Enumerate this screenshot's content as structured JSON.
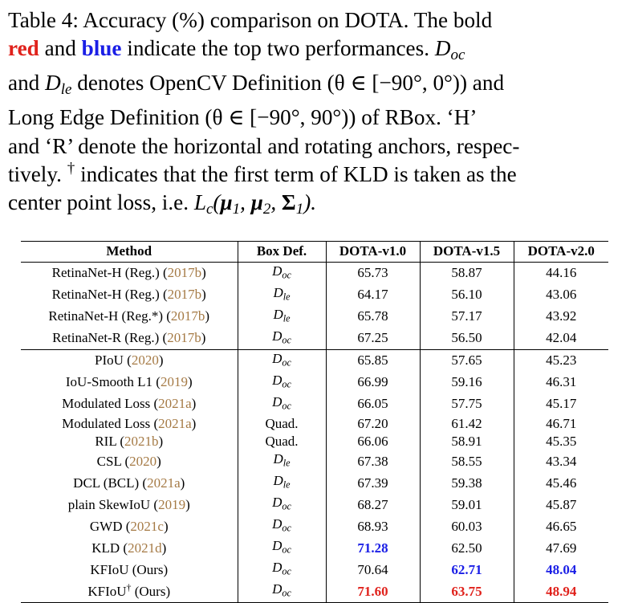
{
  "caption": {
    "label": "Table 4:",
    "t1": " Accuracy (%) comparison on DOTA. The bold",
    "red_word": "red",
    "t2": " and ",
    "blue_word": "blue",
    "t3": " indicate the top two performances.  ",
    "d_oc_main": "D",
    "d_oc_sub": "oc",
    "t4": "and ",
    "d_le_main": "D",
    "d_le_sub": "le",
    "t5": " denotes OpenCV Definition (θ ∈ [−90°, 0°)) and",
    "line4": "Long Edge Definition (θ ∈ [−90°, 90°)) of RBox.  ‘H’",
    "line5": "and ‘R’ denote the horizontal and rotating anchors, respec-",
    "line6a": "tively. ",
    "dagger": "†",
    "line6b": " indicates that the first term of KLD is taken as the",
    "line7a": "center point loss, i.e. ",
    "lc_main": "L",
    "lc_sub": "c",
    "mu": "μ",
    "sigma": "Σ",
    "sub1": "1",
    "sub2": "2"
  },
  "table": {
    "headers": [
      "Method",
      "Box Def.",
      "DOTA-v1.0",
      "DOTA-v1.5",
      "DOTA-v2.0"
    ],
    "rows": [
      {
        "method": "RetinaNet-H (Reg.) (",
        "cite": "2017b",
        "close": ")",
        "def_main": "D",
        "def_sub": "oc",
        "v1": "65.73",
        "v15": "58.87",
        "v2": "44.16"
      },
      {
        "method": "RetinaNet-H (Reg.) (",
        "cite": "2017b",
        "close": ")",
        "def_main": "D",
        "def_sub": "le",
        "v1": "64.17",
        "v15": "56.10",
        "v2": "43.06"
      },
      {
        "method": "RetinaNet-H (Reg.*) (",
        "cite": "2017b",
        "close": ")",
        "def_main": "D",
        "def_sub": "le",
        "v1": "65.78",
        "v15": "57.17",
        "v2": "43.92"
      },
      {
        "method": "RetinaNet-R (Reg.) (",
        "cite": "2017b",
        "close": ")",
        "def_main": "D",
        "def_sub": "oc",
        "v1": "67.25",
        "v15": "56.50",
        "v2": "42.04"
      },
      {
        "method": "PIoU (",
        "cite": "2020",
        "close": ")",
        "def_main": "D",
        "def_sub": "oc",
        "v1": "65.85",
        "v15": "57.65",
        "v2": "45.23"
      },
      {
        "method": "IoU-Smooth L1 (",
        "cite": "2019",
        "close": ")",
        "def_main": "D",
        "def_sub": "oc",
        "v1": "66.99",
        "v15": "59.16",
        "v2": "46.31"
      },
      {
        "method": "Modulated Loss (",
        "cite": "2021a",
        "close": ")",
        "def_main": "D",
        "def_sub": "oc",
        "v1": "66.05",
        "v15": "57.75",
        "v2": "45.17"
      },
      {
        "method": "Modulated Loss (",
        "cite": "2021a",
        "close": ")",
        "def_text": "Quad.",
        "v1": "67.20",
        "v15": "61.42",
        "v2": "46.71"
      },
      {
        "method": "RIL (",
        "cite": "2021b",
        "close": ")",
        "def_text": "Quad.",
        "v1": "66.06",
        "v15": "58.91",
        "v2": "45.35"
      },
      {
        "method": "CSL (",
        "cite": "2020",
        "close": ")",
        "def_main": "D",
        "def_sub": "le",
        "v1": "67.38",
        "v15": "58.55",
        "v2": "43.34"
      },
      {
        "method": "DCL (BCL) (",
        "cite": "2021a",
        "close": ")",
        "def_main": "D",
        "def_sub": "le",
        "v1": "67.39",
        "v15": "59.38",
        "v2": "45.46"
      },
      {
        "method": "plain SkewIoU (",
        "cite": "2019",
        "close": ")",
        "def_main": "D",
        "def_sub": "oc",
        "v1": "68.27",
        "v15": "59.01",
        "v2": "45.87"
      },
      {
        "method": "GWD (",
        "cite": "2021c",
        "close": ")",
        "def_main": "D",
        "def_sub": "oc",
        "v1": "68.93",
        "v15": "60.03",
        "v2": "46.65"
      },
      {
        "method": "KLD (",
        "cite": "2021d",
        "close": ")",
        "def_main": "D",
        "def_sub": "oc",
        "v1": "71.28",
        "v15": "62.50",
        "v2": "47.69",
        "v1_style": "blue"
      },
      {
        "method": "KFIoU (Ours)",
        "def_main": "D",
        "def_sub": "oc",
        "v1": "70.64",
        "v15": "62.71",
        "v2": "48.04",
        "v15_style": "blue",
        "v2_style": "blue"
      },
      {
        "method": "KFIoU",
        "dagger": "†",
        "method_after": " (Ours)",
        "def_main": "D",
        "def_sub": "oc",
        "v1": "71.60",
        "v15": "63.75",
        "v2": "48.94",
        "v1_style": "red",
        "v15_style": "red",
        "v2_style": "red"
      }
    ]
  },
  "colors": {
    "best": "#e0221c",
    "second": "#1a1ee6",
    "citation": "#a57a45"
  }
}
